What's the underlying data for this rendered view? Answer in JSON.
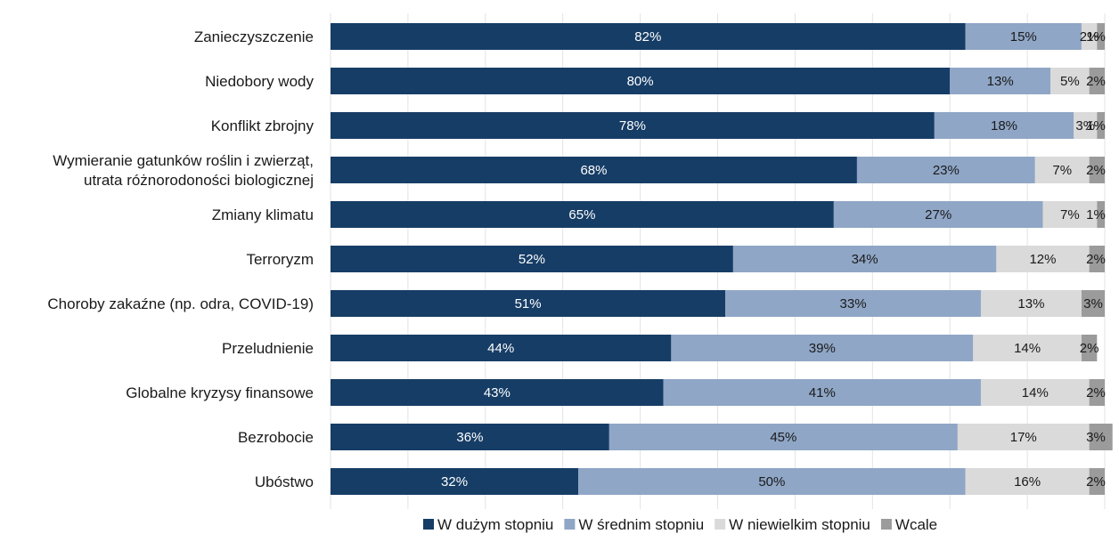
{
  "chart_data": {
    "type": "bar",
    "orientation": "horizontal",
    "stacked": "100%",
    "categories": [
      [
        "Zanieczyszczenie"
      ],
      [
        "Niedobory wody"
      ],
      [
        "Konflikt zbrojny"
      ],
      [
        "Wymieranie gatunków roślin i zwierząt,",
        "utrata różnorodoności biologicznej"
      ],
      [
        "Zmiany klimatu"
      ],
      [
        "Terroryzm"
      ],
      [
        "Choroby zakaźne (np. odra, COVID-19)"
      ],
      [
        "Przeludnienie"
      ],
      [
        "Globalne kryzysy finansowe"
      ],
      [
        "Bezrobocie"
      ],
      [
        "Ubóstwo"
      ]
    ],
    "series": [
      {
        "name": "W dużym stopniu",
        "color": "#163d66",
        "label_color": "#ffffff",
        "values": [
          82,
          80,
          78,
          68,
          65,
          52,
          51,
          44,
          43,
          36,
          32
        ],
        "labels": [
          "82%",
          "80%",
          "78%",
          "68%",
          "65%",
          "52%",
          "51%",
          "44%",
          "43%",
          "36%",
          "32%"
        ]
      },
      {
        "name": "W średnim stopniu",
        "color": "#8fa6c6",
        "label_color": "#1a1a1a",
        "values": [
          15,
          13,
          18,
          23,
          27,
          34,
          33,
          39,
          41,
          45,
          50
        ],
        "labels": [
          "15%",
          "13%",
          "18%",
          "23%",
          "27%",
          "34%",
          "33%",
          "39%",
          "41%",
          "45%",
          "50%"
        ]
      },
      {
        "name": "W niewielkim stopniu",
        "color": "#dadada",
        "label_color": "#1a1a1a",
        "values": [
          2,
          5,
          3,
          7,
          7,
          12,
          13,
          14,
          14,
          17,
          16
        ],
        "labels": [
          "2%",
          "5%",
          "3%",
          "7%",
          "7%",
          "12%",
          "13%",
          "14%",
          "14%",
          "17%",
          "16%"
        ]
      },
      {
        "name": "Wcale",
        "color": "#9b9b9b",
        "label_color": "#1a1a1a",
        "values": [
          1,
          2,
          1,
          2,
          1,
          2,
          3,
          2,
          2,
          3,
          2
        ],
        "labels": [
          "1%",
          "2%",
          "1%",
          "2%",
          "1%",
          "2%",
          "3%",
          "2%",
          "2%",
          "3%",
          "2%"
        ]
      }
    ],
    "xlim": [
      0,
      100
    ],
    "grid": true,
    "legend_position": "bottom"
  }
}
